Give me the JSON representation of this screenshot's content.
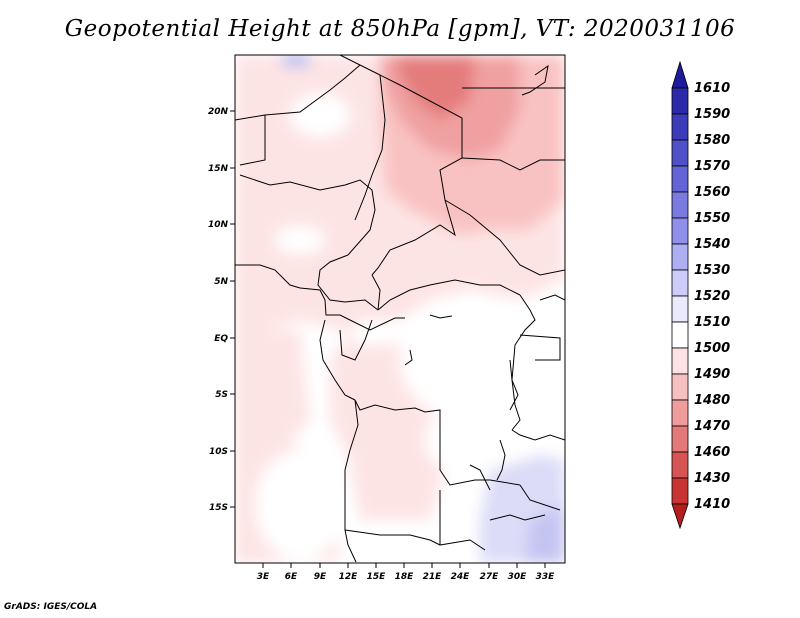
{
  "title": "Geopotential Height at 850hPa [gpm], VT: 2020031106",
  "footer": "GrADS: IGES/COLA",
  "map": {
    "lat_labels": [
      "20N",
      "15N",
      "10N",
      "5N",
      "EQ",
      "5S",
      "10S",
      "15S"
    ],
    "lon_labels": [
      "3E",
      "6E",
      "9E",
      "12E",
      "15E",
      "18E",
      "21E",
      "24E",
      "27E",
      "30E",
      "33E"
    ]
  },
  "colorbar": {
    "levels": [
      "1610",
      "1590",
      "1580",
      "1570",
      "1560",
      "1550",
      "1540",
      "1530",
      "1520",
      "1510",
      "1500",
      "1490",
      "1480",
      "1470",
      "1460",
      "1430",
      "1410"
    ],
    "colors": [
      "#1e1a9c",
      "#2c2aa8",
      "#3c3cb8",
      "#5050c8",
      "#6464d6",
      "#7a7ae0",
      "#9090ea",
      "#aeaef2",
      "#ccccf8",
      "#eaeafc",
      "#ffffff",
      "#fce2e2",
      "#f6c0c0",
      "#ee9c9c",
      "#e27878",
      "#d65454",
      "#c83434",
      "#b41e1e"
    ]
  }
}
